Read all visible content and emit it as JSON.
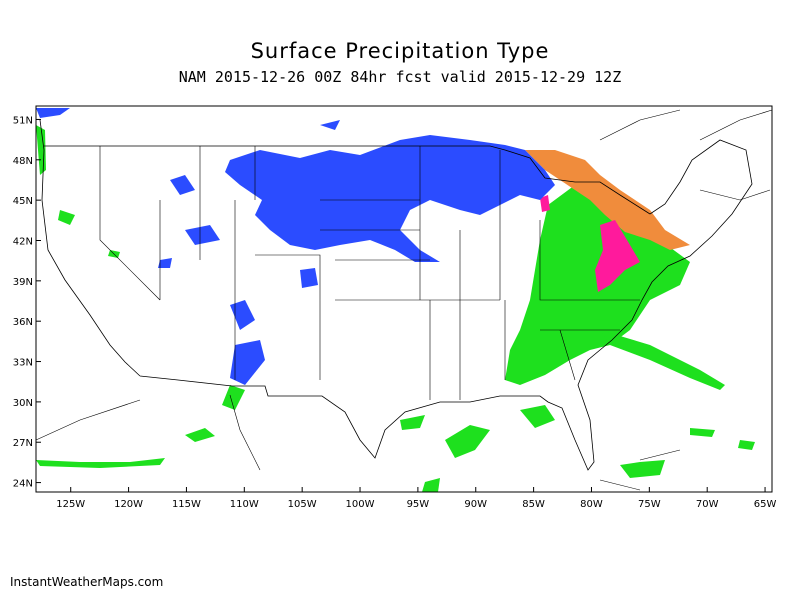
{
  "title": "Surface Precipitation Type",
  "subtitle": "NAM 2015-12-26 00Z 84hr fcst valid 2015-12-29 12Z",
  "map": {
    "xlim": [
      -128,
      -64.4
    ],
    "ylim": [
      23.3,
      52
    ],
    "xticks": [
      {
        "value": -125,
        "label": "125W"
      },
      {
        "value": -120,
        "label": "120W"
      },
      {
        "value": -115,
        "label": "115W"
      },
      {
        "value": -110,
        "label": "110W"
      },
      {
        "value": -105,
        "label": "105W"
      },
      {
        "value": -100,
        "label": "100W"
      },
      {
        "value": -95,
        "label": "95W"
      },
      {
        "value": -90,
        "label": "90W"
      },
      {
        "value": -85,
        "label": "85W"
      },
      {
        "value": -80,
        "label": "80W"
      },
      {
        "value": -75,
        "label": "75W"
      },
      {
        "value": -70,
        "label": "70W"
      },
      {
        "value": -65,
        "label": "65W"
      }
    ],
    "yticks": [
      {
        "value": 24,
        "label": "24N"
      },
      {
        "value": 27,
        "label": "27N"
      },
      {
        "value": 30,
        "label": "30N"
      },
      {
        "value": 33,
        "label": "33N"
      },
      {
        "value": 36,
        "label": "36N"
      },
      {
        "value": 39,
        "label": "39N"
      },
      {
        "value": 42,
        "label": "42N"
      },
      {
        "value": 45,
        "label": "45N"
      },
      {
        "value": 48,
        "label": "48N"
      },
      {
        "value": 51,
        "label": "51N"
      }
    ]
  },
  "credit": "InstantWeatherMaps.com"
}
